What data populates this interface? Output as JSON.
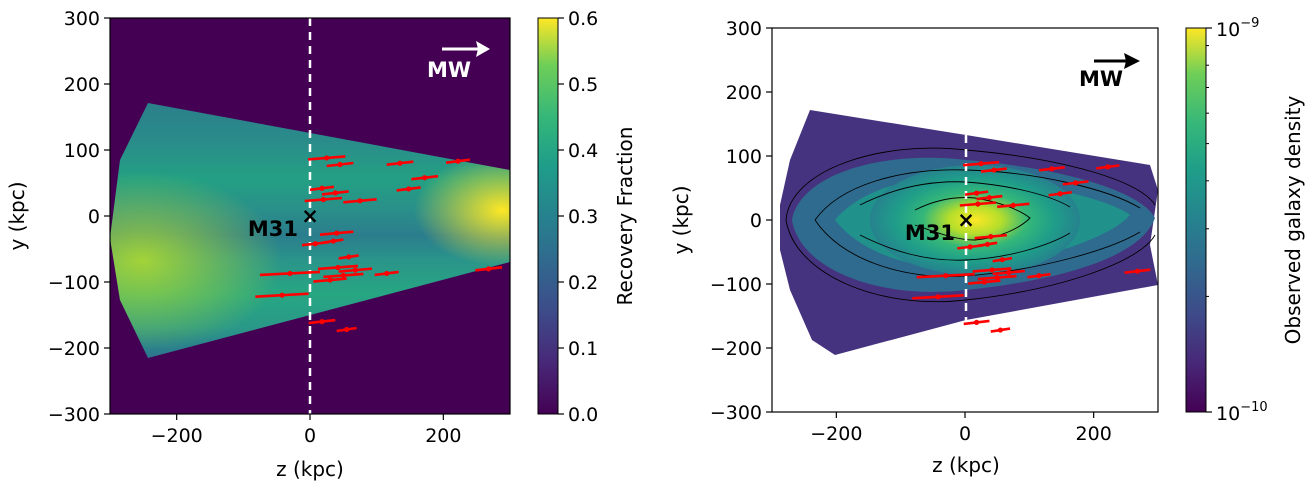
{
  "chart_data": [
    {
      "type": "heatmap",
      "xlabel": "z (kpc)",
      "ylabel": "y (kpc)",
      "xlim": [
        -300,
        300
      ],
      "ylim": [
        -300,
        300
      ],
      "xticks": [
        "−200",
        "0",
        "200"
      ],
      "xtick_values": [
        -200,
        0,
        200
      ],
      "yticks": [
        "300",
        "200",
        "100",
        "0",
        "−100",
        "−200",
        "−300"
      ],
      "ytick_values": [
        300,
        200,
        100,
        0,
        -100,
        -200,
        -300
      ],
      "colorbar": {
        "label": "Recovery Fraction",
        "scale": "linear",
        "range": [
          0.0,
          0.6
        ],
        "ticks": [
          "0.0",
          "0.1",
          "0.2",
          "0.3",
          "0.4",
          "0.5",
          "0.6"
        ],
        "tick_values": [
          0.0,
          0.1,
          0.2,
          0.3,
          0.4,
          0.5,
          0.6
        ]
      },
      "annotations": [
        {
          "text": "M31",
          "marker": "×",
          "x": 0,
          "y": 0
        },
        {
          "text": "MW",
          "arrow": "right"
        }
      ],
      "vertical_line": {
        "x": 0,
        "style": "dashed",
        "color": "#ffffff"
      }
    },
    {
      "type": "heatmap",
      "xlabel": "z (kpc)",
      "ylabel": "y (kpc)",
      "xlim": [
        -300,
        300
      ],
      "ylim": [
        -300,
        300
      ],
      "xticks": [
        "−200",
        "0",
        "200"
      ],
      "xtick_values": [
        -200,
        0,
        200
      ],
      "yticks": [
        "300",
        "200",
        "100",
        "0",
        "−100",
        "−200",
        "−300"
      ],
      "ytick_values": [
        300,
        200,
        100,
        0,
        -100,
        -200,
        -300
      ],
      "colorbar": {
        "label": "Observed galaxy density",
        "scale": "log",
        "range": [
          1e-10,
          1e-09
        ],
        "ticks": [
          "10",
          "10"
        ],
        "tick_exponents": [
          "−9",
          "−10"
        ],
        "tick_values": [
          1e-09,
          1e-10
        ]
      },
      "contours": true,
      "annotations": [
        {
          "text": "M31",
          "marker": "×",
          "x": 0,
          "y": 0
        },
        {
          "text": "MW",
          "arrow": "right"
        }
      ],
      "vertical_line": {
        "x": 0,
        "style": "dashed",
        "color": "#ffffff"
      }
    }
  ],
  "satellites": [
    {
      "z": 25,
      "y": 88,
      "err": 28
    },
    {
      "z": 45,
      "y": 78,
      "err": 20
    },
    {
      "z": 18,
      "y": 42,
      "err": 18
    },
    {
      "z": 38,
      "y": 35,
      "err": 20
    },
    {
      "z": 20,
      "y": 25,
      "err": 28
    },
    {
      "z": 75,
      "y": 23,
      "err": 25
    },
    {
      "z": 135,
      "y": 80,
      "err": 20
    },
    {
      "z": 172,
      "y": 58,
      "err": 20
    },
    {
      "z": 148,
      "y": 41,
      "err": 18
    },
    {
      "z": 222,
      "y": 83,
      "err": 18
    },
    {
      "z": 40,
      "y": -26,
      "err": 25
    },
    {
      "z": 8,
      "y": -42,
      "err": 20
    },
    {
      "z": 35,
      "y": -38,
      "err": 15
    },
    {
      "z": 58,
      "y": -62,
      "err": 15
    },
    {
      "z": -30,
      "y": -87,
      "err": 45
    },
    {
      "z": -42,
      "y": -120,
      "err": 40
    },
    {
      "z": 50,
      "y": -90,
      "err": 30
    },
    {
      "z": 42,
      "y": -78,
      "err": 30
    },
    {
      "z": 68,
      "y": -82,
      "err": 25
    },
    {
      "z": 30,
      "y": -97,
      "err": 25
    },
    {
      "z": 115,
      "y": -87,
      "err": 18
    },
    {
      "z": 268,
      "y": -80,
      "err": 20
    },
    {
      "z": 18,
      "y": -160,
      "err": 20
    },
    {
      "z": 55,
      "y": -172,
      "err": 15
    }
  ],
  "colors": {
    "background_low": "#440154",
    "satellite": "#ff0000",
    "dashed_line": "#ffffff"
  }
}
